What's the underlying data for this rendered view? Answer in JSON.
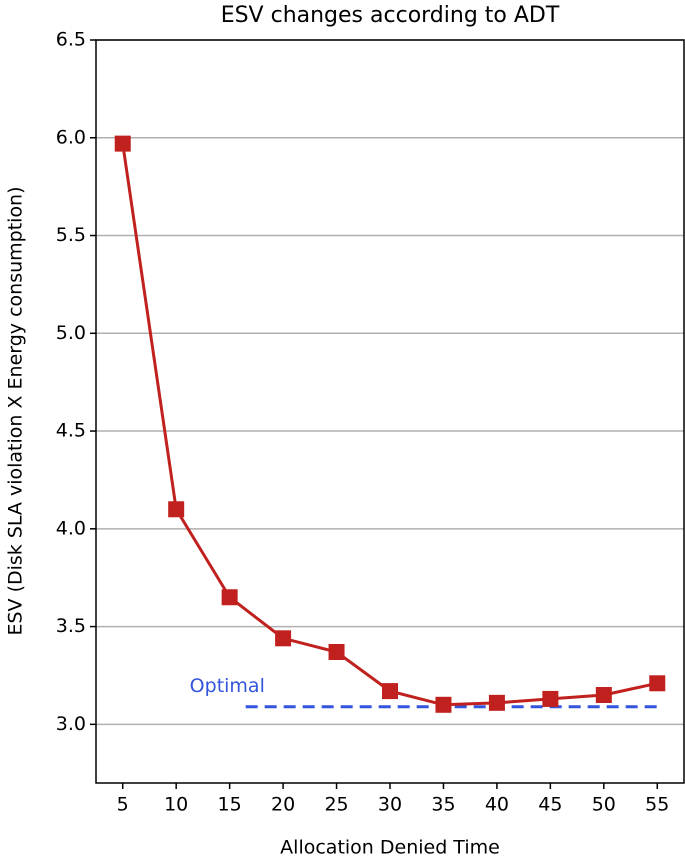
{
  "chart_data": {
    "type": "line",
    "title": "ESV changes according to ADT",
    "xlabel": "Allocation Denied Time",
    "ylabel": "ESV (Disk SLA violation X Energy consumption)",
    "x": [
      5,
      10,
      15,
      20,
      25,
      30,
      35,
      40,
      45,
      50,
      55
    ],
    "values": [
      5.97,
      4.1,
      3.65,
      3.44,
      3.37,
      3.17,
      3.1,
      3.11,
      3.13,
      3.15,
      3.21
    ],
    "color": "#c0211f",
    "xlim": [
      2.5,
      57.5
    ],
    "xticks": [
      5,
      10,
      15,
      20,
      25,
      30,
      35,
      40,
      45,
      50,
      55
    ],
    "ylim": [
      2.7,
      6.5
    ],
    "yticks": [
      {
        "value": 3.0,
        "label": "3.0"
      },
      3.5,
      {
        "value": 4.0,
        "label": "4.0"
      },
      4.5,
      {
        "value": 5.0,
        "label": "5.0"
      },
      5.5,
      {
        "value": 6.0,
        "label": "6.0"
      },
      6.5
    ],
    "grid": true,
    "hline": {
      "label": "Optimal",
      "y": 3.09,
      "x": [
        16.5,
        55
      ],
      "color": "#3355dd"
    }
  }
}
